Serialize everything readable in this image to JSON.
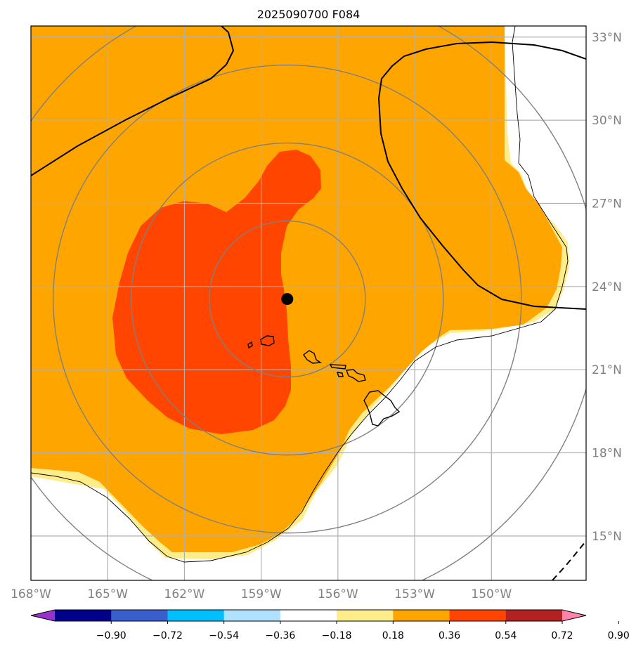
{
  "map": {
    "title": "2025090700 F084",
    "lon_range": [
      -168,
      -146.3
    ],
    "lat_range": [
      13.4,
      33.4
    ],
    "lon_ticks": [
      {
        "value": -168,
        "label": "168°W"
      },
      {
        "value": -165,
        "label": "165°W"
      },
      {
        "value": -162,
        "label": "162°W"
      },
      {
        "value": -159,
        "label": "159°W"
      },
      {
        "value": -156,
        "label": "156°W"
      },
      {
        "value": -153,
        "label": "153°W"
      },
      {
        "value": -150,
        "label": "150°W"
      }
    ],
    "lat_ticks": [
      {
        "value": 33,
        "label": "33°N"
      },
      {
        "value": 30,
        "label": "30°N"
      },
      {
        "value": 27,
        "label": "27°N"
      },
      {
        "value": 24,
        "label": "24°N"
      },
      {
        "value": 21,
        "label": "21°N"
      },
      {
        "value": 18,
        "label": "18°N"
      },
      {
        "value": 15,
        "label": "15°N"
      }
    ],
    "center_marker": {
      "lon": -157.98,
      "lat": 23.55
    },
    "range_rings_deg": [
      3,
      6,
      9,
      12
    ],
    "colors": {
      "land_background": "#ffffff",
      "gridline": "#b0b0b0",
      "ring": "#808080",
      "tick_label": "#808080",
      "coast": "#000000"
    }
  },
  "colorbar": {
    "colors": [
      "#9932cc",
      "#00008b",
      "#3a5fcd",
      "#00bfff",
      "#b0e2ff",
      "#ffffff",
      "#ffec8b",
      "#ffa500",
      "#ff4500",
      "#b22222",
      "#ff82ab"
    ],
    "tick_labels": [
      "−0.90",
      "−0.72",
      "−0.54",
      "−0.36",
      "−0.18",
      "0.18",
      "0.36",
      "0.54",
      "0.72",
      "0.90"
    ]
  }
}
